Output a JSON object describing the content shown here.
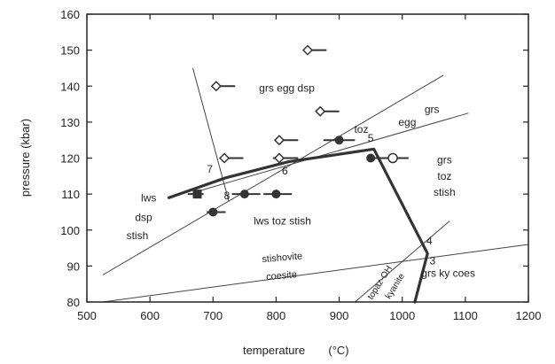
{
  "chart_data": {
    "type": "scatter",
    "xlabel": "temperature",
    "xunit": "(°C)",
    "ylabel": "pressure (kbar)",
    "xlim": [
      500,
      1200
    ],
    "ylim": [
      80,
      160
    ],
    "xticks": [
      "500",
      "600",
      "700",
      "800",
      "900",
      "1000",
      "1100",
      "1200"
    ],
    "yticks": [
      "80",
      "90",
      "100",
      "110",
      "120",
      "130",
      "140",
      "150",
      "160"
    ],
    "grid": false,
    "reaction_lines": [
      {
        "points": [
          [
            525,
            87.5
          ],
          [
            1065,
            143
          ]
        ]
      },
      {
        "points": [
          [
            680,
            111
          ],
          [
            1105,
            132.5
          ]
        ]
      },
      {
        "points": [
          [
            525,
            80
          ],
          [
            1200,
            96
          ]
        ]
      },
      {
        "points": [
          [
            925,
            80
          ],
          [
            1075,
            102.5
          ]
        ]
      },
      {
        "points": [
          [
            668,
            145
          ],
          [
            725,
            108
          ]
        ]
      }
    ],
    "bold_boundaries": [
      {
        "points": [
          [
            630,
            109
          ],
          [
            720,
            114.5
          ],
          [
            820,
            119
          ],
          [
            955,
            122.5
          ],
          [
            1040,
            93.5
          ],
          [
            1020,
            80
          ]
        ]
      }
    ],
    "points": [
      {
        "x": 850,
        "y": 150,
        "marker": "diamond-open",
        "error_x": [
          850,
          880
        ]
      },
      {
        "x": 705,
        "y": 140,
        "marker": "diamond-open",
        "error_x": [
          705,
          735
        ]
      },
      {
        "x": 870,
        "y": 133,
        "marker": "diamond-open",
        "error_x": [
          870,
          900
        ]
      },
      {
        "x": 805,
        "y": 125,
        "marker": "diamond-open",
        "error_x": [
          805,
          835
        ]
      },
      {
        "x": 900,
        "y": 125,
        "marker": "circle-filled",
        "error_x": [
          875,
          925
        ]
      },
      {
        "x": 718,
        "y": 120,
        "marker": "diamond-open",
        "error_x": [
          718,
          748
        ]
      },
      {
        "x": 805,
        "y": 120,
        "marker": "diamond-open",
        "error_x": [
          795,
          835
        ]
      },
      {
        "x": 950,
        "y": 120,
        "marker": "circle-filled",
        "error_x": [
          945,
          975
        ]
      },
      {
        "x": 985,
        "y": 120,
        "marker": "circle-open",
        "error_x": [
          955,
          1010
        ]
      },
      {
        "x": 675,
        "y": 110,
        "marker": "square-filled",
        "error_x": [
          660,
          685
        ]
      },
      {
        "x": 750,
        "y": 110,
        "marker": "circle-filled",
        "error_x": [
          730,
          775
        ]
      },
      {
        "x": 800,
        "y": 110,
        "marker": "circle-filled",
        "error_x": [
          780,
          825
        ]
      },
      {
        "x": 700,
        "y": 105,
        "marker": "circle-filled",
        "error_x": [
          690,
          720
        ]
      }
    ],
    "annotations": [
      {
        "text": "grs egg dsp",
        "x": 817,
        "y": 138.5,
        "size": 12,
        "rotate": 0
      },
      {
        "text": "grs",
        "x": 1047,
        "y": 132.5,
        "size": 12,
        "rotate": 0
      },
      {
        "text": "egg",
        "x": 1008,
        "y": 129,
        "size": 12,
        "rotate": 0
      },
      {
        "text": "toz",
        "x": 935,
        "y": 127,
        "size": 12,
        "rotate": 0
      },
      {
        "text": "grs",
        "x": 1067,
        "y": 118.5,
        "size": 12,
        "rotate": 0
      },
      {
        "text": "toz",
        "x": 1067,
        "y": 114,
        "size": 12,
        "rotate": 0
      },
      {
        "text": "stish",
        "x": 1067,
        "y": 109.5,
        "size": 12,
        "rotate": 0
      },
      {
        "text": "lws",
        "x": 598,
        "y": 108,
        "size": 12,
        "rotate": 0
      },
      {
        "text": "dsp",
        "x": 590,
        "y": 102.5,
        "size": 12,
        "rotate": 0
      },
      {
        "text": "stish",
        "x": 580,
        "y": 97.5,
        "size": 12,
        "rotate": 0
      },
      {
        "text": "lws toz stish",
        "x": 810,
        "y": 101.5,
        "size": 12,
        "rotate": 0
      },
      {
        "text": "stishovite",
        "x": 810,
        "y": 91.5,
        "size": 11,
        "rotate": -5
      },
      {
        "text": "coesite",
        "x": 809,
        "y": 86.5,
        "size": 11,
        "rotate": -5
      },
      {
        "text": "grs ky coes",
        "x": 1073,
        "y": 87,
        "size": 12,
        "rotate": 0
      },
      {
        "text": "topaz-OH",
        "x": 968,
        "y": 85,
        "size": 10,
        "rotate": -58
      },
      {
        "text": "kyanite",
        "x": 992,
        "y": 84,
        "size": 10,
        "rotate": -58
      }
    ],
    "point_labels": [
      {
        "text": "4",
        "x": 1043,
        "y": 96
      },
      {
        "text": "3",
        "x": 1048,
        "y": 90.5
      },
      {
        "text": "5",
        "x": 950,
        "y": 124.5
      },
      {
        "text": "6",
        "x": 814,
        "y": 115.5
      },
      {
        "text": "7",
        "x": 695,
        "y": 116
      },
      {
        "text": "8",
        "x": 722,
        "y": 108.5
      }
    ]
  }
}
